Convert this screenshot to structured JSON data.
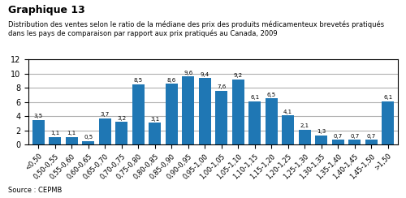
{
  "chart_data": {
    "type": "bar",
    "title": "Graphique 13",
    "subtitle": "Distribution des ventes selon le ratio de la médiane des prix des produits médicamenteux brevetés pratiqués\ndans les pays de comparaison par rapport aux prix pratiqués au Canada, 2009",
    "annotations": [
      "Source : CEPMB"
    ],
    "categories": [
      "<0,50",
      "0,50-0,55",
      "0,55-0,60",
      "0,60-0,65",
      "0,65-0,70",
      "0,70-0,75",
      "0,75-0,80",
      "0,80-0,85",
      "0,85-0,90",
      "0,90-0,95",
      "0,95-1,00",
      "1,00-1,05",
      "1,05-1,10",
      "1,10-1,15",
      "1,15-1,20",
      "1,20-1,25",
      "1,25-1,30",
      "1,30-1,35",
      "1,35-1,40",
      "1,40-1,45",
      "1,45-1,50",
      ">1,50"
    ],
    "values": [
      3.5,
      1.1,
      1.1,
      0.5,
      3.7,
      3.2,
      8.5,
      3.1,
      8.6,
      9.6,
      9.4,
      7.6,
      9.2,
      6.1,
      6.5,
      4.1,
      2.1,
      1.3,
      0.7,
      0.7,
      0.7,
      6.1
    ],
    "value_labels": [
      "3,5",
      "1,1",
      "1,1",
      "0,5",
      "3,7",
      "3,2",
      "8,5",
      "3,1",
      "8,6",
      "9,6",
      "9,4",
      "7,6",
      "9,2",
      "6,1",
      "6,5",
      "4,1",
      "2,1",
      "1,3",
      "0,7",
      "0,7",
      "0,7",
      "6,1"
    ],
    "data_labels": true,
    "ylim": [
      0,
      12
    ],
    "yticks": [
      0,
      2,
      4,
      6,
      8,
      10,
      12
    ],
    "grid": true
  }
}
